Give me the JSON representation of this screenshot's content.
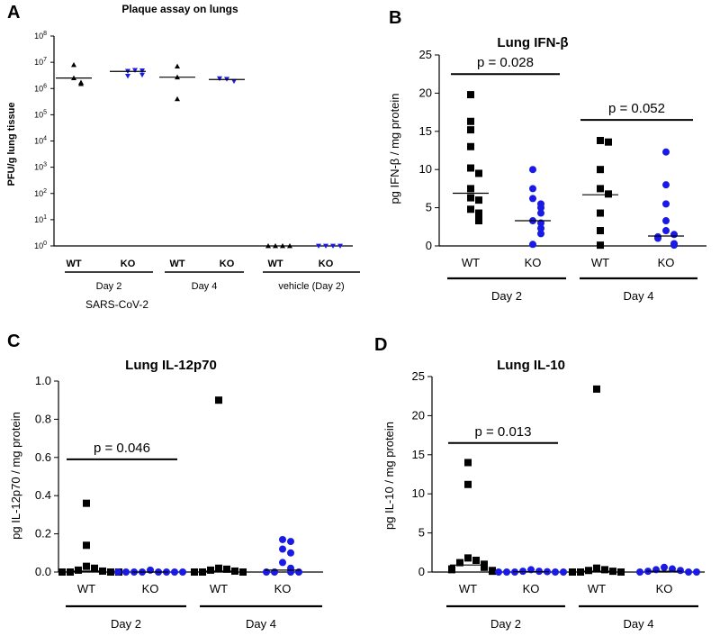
{
  "colors": {
    "wt": "#000000",
    "ko": "#1a1ae6"
  },
  "chart_data": [
    {
      "id": "A",
      "type": "scatter",
      "panel_letter": "A",
      "title": "Plaque assay on lungs",
      "ylabel": "PFU/g lung tissue",
      "yscale": "log",
      "ylim": [
        1,
        100000000
      ],
      "ytick_bases": [
        "10",
        "10",
        "10",
        "10",
        "10",
        "10",
        "10",
        "10",
        "10"
      ],
      "ytick_exps": [
        "0",
        "1",
        "2",
        "3",
        "4",
        "5",
        "6",
        "7",
        "8"
      ],
      "groups": [
        {
          "label": "WT",
          "marker": "triangle-up",
          "color": "#000000",
          "values": [
            2500000,
            1700000,
            8000000,
            1500000
          ],
          "median": 2500000
        },
        {
          "label": "KO",
          "marker": "triangle-down",
          "color": "#1a1ae6",
          "values": [
            4600000,
            3000000,
            5000000,
            3300000,
            4800000
          ],
          "median": 4500000
        },
        {
          "label": "WT",
          "marker": "triangle-up",
          "color": "#000000",
          "values": [
            7000000,
            2700000,
            400000
          ],
          "median": 2700000
        },
        {
          "label": "KO",
          "marker": "triangle-down",
          "color": "#1a1ae6",
          "values": [
            2300000,
            1900000,
            2400000
          ],
          "median": 2200000
        },
        {
          "label": "WT",
          "marker": "triangle-up",
          "color": "#000000",
          "values": [
            1,
            1,
            1,
            1
          ],
          "median": null
        },
        {
          "label": "KO",
          "marker": "triangle-down",
          "color": "#1a1ae6",
          "values": [
            1,
            1,
            1,
            1
          ],
          "median": null
        }
      ],
      "day_labels": [
        "Day 2",
        "Day 4",
        "vehicle (Day 2)"
      ],
      "sub_label": "SARS-CoV-2",
      "pvalues": []
    },
    {
      "id": "B",
      "type": "scatter",
      "panel_letter": "B",
      "title": "Lung IFN-β",
      "ylabel": "pg IFN-β / mg protein",
      "ylim": [
        0,
        25
      ],
      "yticks": [
        "0",
        "5",
        "10",
        "15",
        "20",
        "25"
      ],
      "groups": [
        {
          "label": "WT",
          "marker": "square",
          "color": "#000000",
          "values": [
            19.8,
            16.3,
            15.2,
            13.0,
            10.2,
            9.5,
            7.5,
            6.3,
            6.0,
            4.8,
            4.3,
            3.8,
            3.3
          ],
          "median": 6.9
        },
        {
          "label": "KO",
          "marker": "circle",
          "color": "#1a1ae6",
          "values": [
            10.0,
            7.5,
            6.2,
            5.5,
            5.0,
            4.3,
            3.3,
            3.0,
            2.3,
            1.6,
            0.2
          ],
          "median": 3.3
        },
        {
          "label": "WT",
          "marker": "square",
          "color": "#000000",
          "values": [
            13.8,
            13.6,
            10.0,
            7.5,
            6.8,
            4.3,
            2.0,
            0.1
          ],
          "median": 6.7
        },
        {
          "label": "KO",
          "marker": "circle",
          "color": "#1a1ae6",
          "values": [
            12.3,
            8.0,
            5.5,
            3.3,
            2.0,
            1.5,
            1.2,
            1.0,
            0.3,
            0.1
          ],
          "median": 1.3
        }
      ],
      "day_labels": [
        "Day 2",
        "Day 4"
      ],
      "pvalues": [
        {
          "text": "p = 0.028",
          "from": 0,
          "to": 1,
          "y": 22.5
        },
        {
          "text": "p = 0.052",
          "from": 2,
          "to": 3,
          "y": 16.5
        }
      ]
    },
    {
      "id": "C",
      "type": "scatter",
      "panel_letter": "C",
      "title": "Lung IL-12p70",
      "ylabel": "pg IL-12p70 / mg protein",
      "ylim": [
        0,
        1.0
      ],
      "yticks": [
        "0.0",
        "0.2",
        "0.4",
        "0.6",
        "0.8",
        "1.0"
      ],
      "groups": [
        {
          "label": "WT",
          "marker": "square",
          "color": "#000000",
          "values": [
            0.36,
            0.14,
            0.03,
            0.02,
            0.01,
            0.005,
            0.0,
            0.0,
            0.0,
            0.0
          ],
          "median": 0.005
        },
        {
          "label": "KO",
          "marker": "circle",
          "color": "#1a1ae6",
          "values": [
            0.01,
            0.0,
            0.0,
            0.0,
            0.0,
            0.0,
            0.0,
            0.0,
            0.0
          ],
          "median": 0.0
        },
        {
          "label": "WT",
          "marker": "square",
          "color": "#000000",
          "values": [
            0.9,
            0.02,
            0.015,
            0.01,
            0.005,
            0.0,
            0.0,
            0.0
          ],
          "median": 0.005
        },
        {
          "label": "KO",
          "marker": "circle",
          "color": "#1a1ae6",
          "values": [
            0.17,
            0.16,
            0.12,
            0.1,
            0.05,
            0.02,
            0.0,
            0.0,
            0.0,
            0.0
          ],
          "median": 0.01
        }
      ],
      "day_labels": [
        "Day 2",
        "Day 4"
      ],
      "pvalues": [
        {
          "text": "p = 0.046",
          "from": 0,
          "to": 1,
          "y": 0.59
        }
      ]
    },
    {
      "id": "D",
      "type": "scatter",
      "panel_letter": "D",
      "title": "Lung IL-10",
      "ylabel": "pg IL-10 / mg protein",
      "ylim": [
        0,
        25
      ],
      "yticks": [
        "0",
        "5",
        "10",
        "15",
        "20",
        "25"
      ],
      "groups": [
        {
          "label": "WT",
          "marker": "square",
          "color": "#000000",
          "values": [
            14.0,
            11.2,
            1.8,
            1.5,
            1.2,
            1.0,
            0.8,
            0.6,
            0.4,
            0.3,
            0.2,
            0.1
          ],
          "median": 0.9
        },
        {
          "label": "KO",
          "marker": "circle",
          "color": "#1a1ae6",
          "values": [
            0.3,
            0.1,
            0.1,
            0.05,
            0.0,
            0.0,
            0.0,
            0.0,
            0.0
          ],
          "median": 0.05
        },
        {
          "label": "WT",
          "marker": "square",
          "color": "#000000",
          "values": [
            23.4,
            0.5,
            0.3,
            0.2,
            0.1,
            0.0,
            0.0,
            0.0
          ],
          "median": 0.1
        },
        {
          "label": "KO",
          "marker": "circle",
          "color": "#1a1ae6",
          "values": [
            0.6,
            0.4,
            0.3,
            0.2,
            0.1,
            0.0,
            0.0,
            0.0
          ],
          "median": 0.1
        }
      ],
      "day_labels": [
        "Day 2",
        "Day 4"
      ],
      "pvalues": [
        {
          "text": "p = 0.013",
          "from": 0,
          "to": 1,
          "y": 16.5
        }
      ]
    }
  ]
}
